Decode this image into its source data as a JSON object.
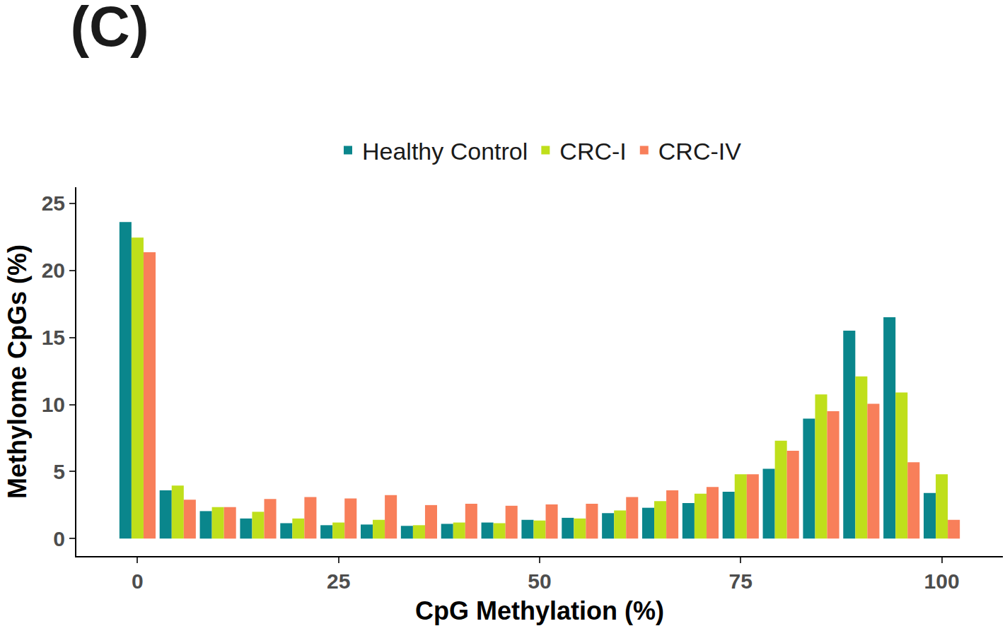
{
  "chart_data": {
    "type": "bar",
    "title": "(C)",
    "x_label": "CpG Methylation (%)",
    "y_label": "Methylome CpGs (%)",
    "x": [
      0,
      5,
      10,
      15,
      20,
      25,
      30,
      35,
      40,
      45,
      50,
      55,
      60,
      65,
      70,
      75,
      80,
      85,
      90,
      95,
      100
    ],
    "series": [
      {
        "name": "Healthy Control",
        "color": "#0a868c",
        "values": [
          23.6,
          3.6,
          2.05,
          1.5,
          1.15,
          1.0,
          1.05,
          0.95,
          1.1,
          1.2,
          1.4,
          1.55,
          1.9,
          2.3,
          2.65,
          3.5,
          5.2,
          8.95,
          15.5,
          16.5,
          3.4
        ]
      },
      {
        "name": "CRC-I",
        "color": "#bfdf1b",
        "values": [
          22.45,
          3.95,
          2.35,
          2.0,
          1.5,
          1.2,
          1.4,
          1.0,
          1.2,
          1.15,
          1.35,
          1.5,
          2.1,
          2.8,
          3.35,
          4.8,
          7.3,
          10.75,
          12.1,
          10.9,
          4.8
        ]
      },
      {
        "name": "CRC-IV",
        "color": "#f87f5a",
        "values": [
          21.35,
          2.9,
          2.35,
          2.95,
          3.1,
          3.0,
          3.25,
          2.5,
          2.6,
          2.45,
          2.55,
          2.6,
          3.1,
          3.6,
          3.85,
          4.8,
          6.55,
          9.5,
          10.05,
          5.7,
          1.4
        ]
      }
    ],
    "xlim": [
      -7.6,
      107.6
    ],
    "ylim": [
      -1.3,
      26.2
    ],
    "xticks": [
      0,
      25,
      50,
      75,
      100
    ],
    "yticks": [
      0,
      5,
      10,
      15,
      20,
      25
    ],
    "grid": false,
    "legend": "top"
  }
}
